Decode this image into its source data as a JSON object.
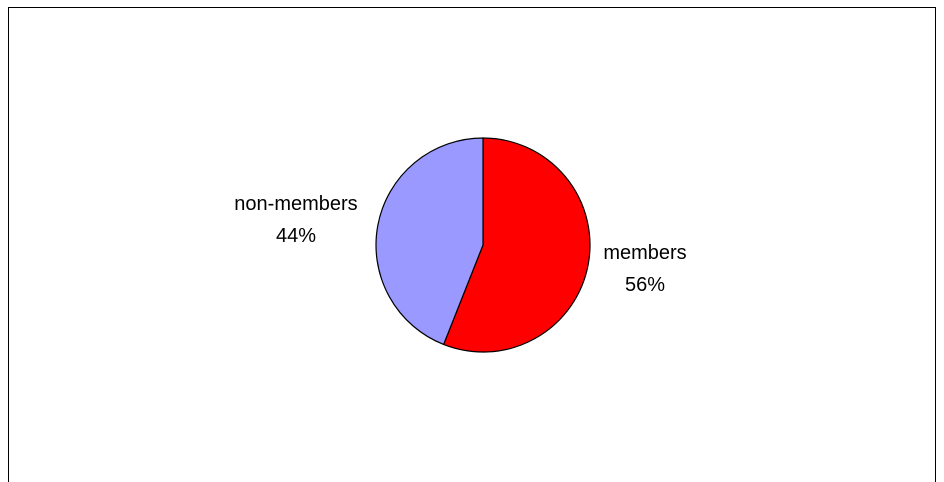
{
  "chart_data": {
    "type": "pie",
    "categories": [
      "members",
      "non-members"
    ],
    "values": [
      56,
      44
    ],
    "labels": [
      "56%",
      "44%"
    ],
    "colors": [
      "#ff0000",
      "#9999ff"
    ],
    "start": "top",
    "direction": "clockwise",
    "legend": "none"
  }
}
